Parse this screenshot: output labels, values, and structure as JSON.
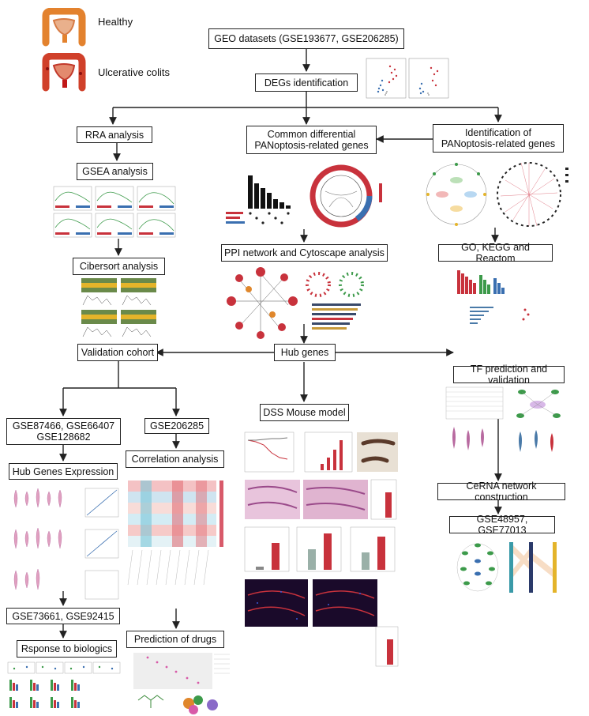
{
  "legend": {
    "healthy": "Healthy",
    "uc": "Ulcerative colits"
  },
  "nodes": {
    "geo": "GEO datasets (GSE193677, GSE206285)",
    "degs": "DEGs identification",
    "rra": "RRA analysis",
    "common_l1": "Common differential",
    "common_l2": "PANoptosis-related genes",
    "ident_l1": "Identification of",
    "ident_l2": "PANoptosis-related genes",
    "gsea": "GSEA analysis",
    "cibersort": "Cibersort analysis",
    "ppi": "PPI network and Cytoscape analysis",
    "go": "GO, KEGG and Reactom",
    "validation": "Validation cohort",
    "hub": "Hub genes",
    "tf": "TF prediction and validation",
    "gse_val_l1": "GSE87466, GSE66407",
    "gse_val_l2": "GSE128682",
    "gse206285": "GSE206285",
    "dss": "DSS Mouse model",
    "hub_expr": "Hub Genes Expression",
    "correlation": "Correlation analysis",
    "cerna": "CeRNA network construction",
    "gse48957": "GSE48957, GSE77013",
    "gse73661": "GSE73661, GSE92415",
    "drugs": "Prediction of drugs",
    "biologics": "Rsponse to biologics"
  },
  "colors": {
    "line": "#222222",
    "red": "#c8323c",
    "blue": "#3a6fb0",
    "green": "#3c9a4a",
    "gray": "#9a9a9a"
  }
}
